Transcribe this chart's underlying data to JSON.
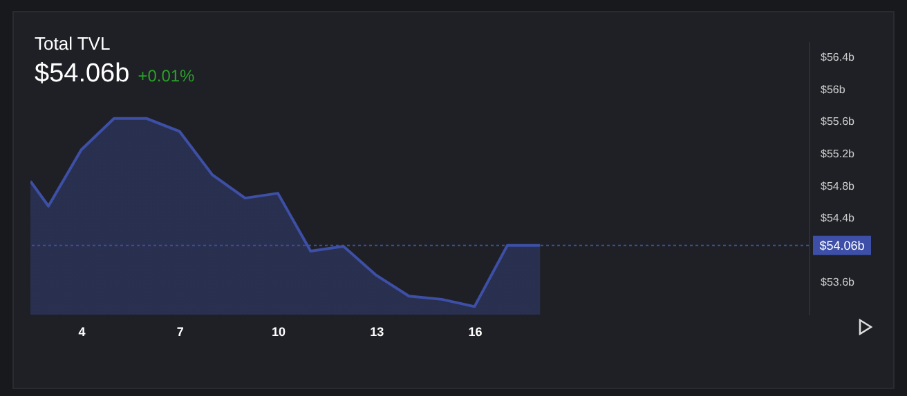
{
  "chart_data": {
    "type": "area",
    "title": "Total TVL",
    "subtitle": "$54.06b",
    "annotations": [
      "+0.01%"
    ],
    "x": [
      2.45,
      3,
      4,
      5,
      6,
      7,
      8,
      9,
      10,
      11,
      12,
      13,
      14,
      15,
      16,
      17,
      18
    ],
    "series": [
      {
        "color": "#3d4fa6",
        "values": [
          54.86,
          54.55,
          55.25,
          55.64,
          55.64,
          55.48,
          54.94,
          54.65,
          54.71,
          53.99,
          54.05,
          53.69,
          53.43,
          53.39,
          53.3,
          54.06,
          54.06
        ]
      }
    ],
    "xlim": [
      2.45,
      26.2
    ],
    "xticks": [
      4,
      7,
      10,
      13,
      16
    ],
    "ylim": [
      53.2,
      56.6
    ],
    "yticks": [
      {
        "value": 53.6,
        "label": "$53.6b"
      },
      {
        "value": 54.4,
        "label": "$54.4b"
      },
      {
        "value": 54.8,
        "label": "$54.8b"
      },
      {
        "value": 55.2,
        "label": "$55.2b"
      },
      {
        "value": 55.6,
        "label": "$55.6b"
      },
      {
        "value": 56,
        "label": "$56b"
      },
      {
        "value": 56.4,
        "label": "$56.4b"
      }
    ],
    "ref_lines": [
      {
        "axis": "y",
        "value": 54.06,
        "label": "$54.06b",
        "color": "#3d4fa6",
        "line_style": "dotted"
      }
    ],
    "grid": false
  }
}
